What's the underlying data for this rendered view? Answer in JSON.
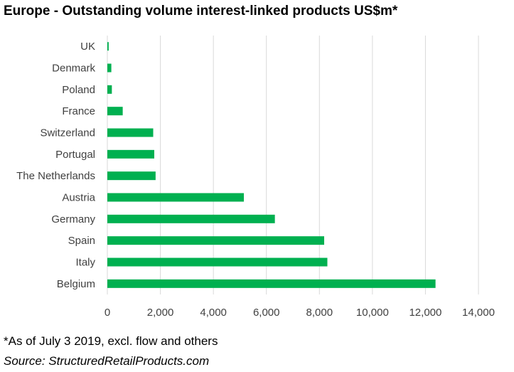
{
  "chart_data": {
    "type": "bar",
    "orientation": "horizontal",
    "title": "Europe - Outstanding volume interest-linked products US$m*",
    "categories": [
      "UK",
      "Denmark",
      "Poland",
      "France",
      "Switzerland",
      "Portugal",
      "The Netherlands",
      "Austria",
      "Germany",
      "Spain",
      "Italy",
      "Belgium"
    ],
    "values": [
      50,
      150,
      170,
      580,
      1730,
      1770,
      1820,
      5150,
      6320,
      8180,
      8300,
      12380
    ],
    "xlim": [
      0,
      14000
    ],
    "xticks": [
      0,
      2000,
      4000,
      6000,
      8000,
      10000,
      12000,
      14000
    ],
    "xtick_labels": [
      "0",
      "2,000",
      "4,000",
      "6,000",
      "8,000",
      "10,000",
      "12,000",
      "14,000"
    ],
    "bar_color": "#00B050",
    "grid": true,
    "legend": "none"
  },
  "footnote": "*As of July 3 2019, excl. flow and others",
  "source": "Source: StructuredRetailProducts.com"
}
